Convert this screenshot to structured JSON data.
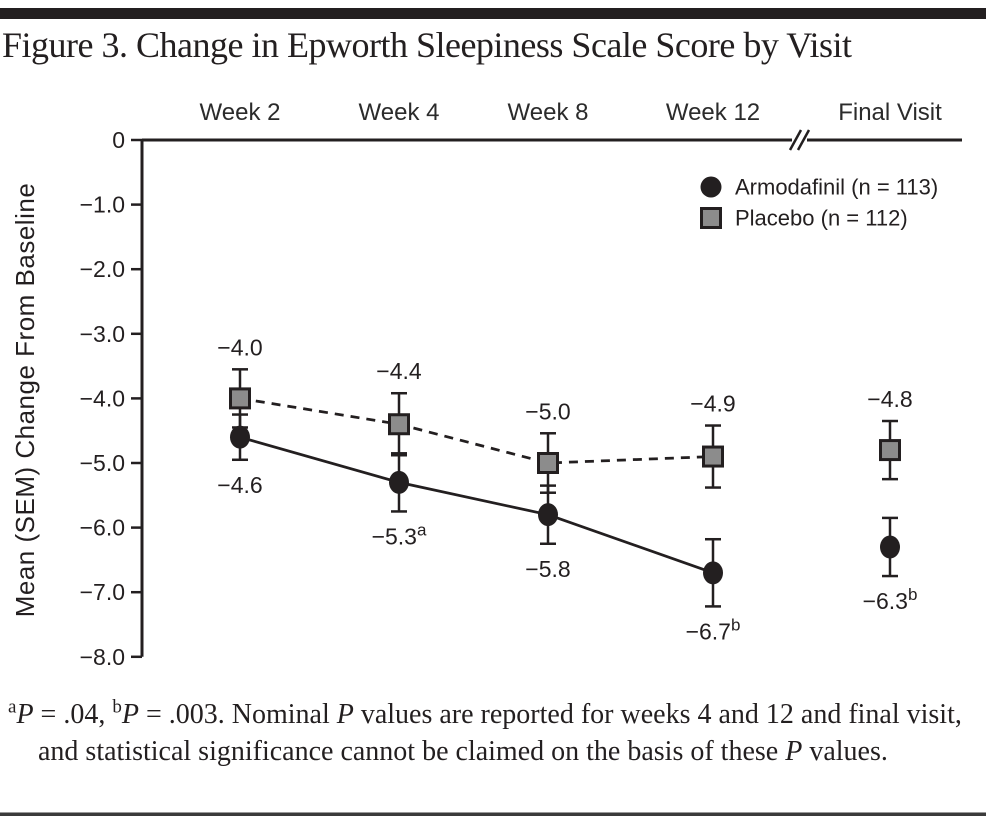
{
  "header": {
    "title": "Figure 3. Change in Epworth Sleepiness Scale Score by Visit"
  },
  "chart_data": {
    "type": "line",
    "title": "Figure 3. Change in Epworth Sleepiness Scale Score by Visit",
    "categories": [
      "Week 2",
      "Week 4",
      "Week 8",
      "Week 12",
      "Final Visit"
    ],
    "axis_break_after_category": "Week 12",
    "ylabel": "Mean (SEM) Change From Baseline",
    "xlabel": "",
    "ylim": [
      -8.0,
      0
    ],
    "grid": false,
    "yticks": [
      {
        "v": 0,
        "label": "0"
      },
      {
        "v": -1,
        "label": "−1.0"
      },
      {
        "v": -2,
        "label": "−2.0"
      },
      {
        "v": -3,
        "label": "−3.0"
      },
      {
        "v": -4,
        "label": "−4.0"
      },
      {
        "v": -5,
        "label": "−5.0"
      },
      {
        "v": -6,
        "label": "−6.0"
      },
      {
        "v": -7,
        "label": "−7.0"
      },
      {
        "v": -8,
        "label": "−8.0"
      }
    ],
    "legend": {
      "position": "top-right"
    },
    "series": [
      {
        "id": "armodafinil",
        "name": "Armodafinil (n = 113)",
        "marker": "circle",
        "marker_fill": "#231f20",
        "line_style": "solid",
        "line_color": "#231f20",
        "values": [
          -4.6,
          -5.3,
          -5.8,
          -6.7,
          -6.3
        ],
        "sem": [
          0.35,
          0.45,
          0.45,
          0.52,
          0.45
        ],
        "labels": [
          {
            "text": "−4.6"
          },
          {
            "text": "−5.3",
            "sup": "a"
          },
          {
            "text": "−5.8"
          },
          {
            "text": "−6.7",
            "sup": "b"
          },
          {
            "text": "−6.3",
            "sup": "b"
          }
        ],
        "label_position": "below",
        "connected_through_index": 3
      },
      {
        "id": "placebo",
        "name": "Placebo (n = 112)",
        "marker": "square",
        "marker_fill": "#8c8c8c",
        "line_style": "dashed",
        "line_color": "#231f20",
        "values": [
          -4.0,
          -4.4,
          -5.0,
          -4.9,
          -4.8
        ],
        "sem": [
          0.45,
          0.48,
          0.46,
          0.48,
          0.45
        ],
        "labels": [
          {
            "text": "−4.0"
          },
          {
            "text": "−4.4"
          },
          {
            "text": "−5.0"
          },
          {
            "text": "−4.9"
          },
          {
            "text": "−4.8"
          }
        ],
        "label_position": "above",
        "connected_through_index": 3
      }
    ]
  },
  "footnote": {
    "segments": [
      {
        "text": "a",
        "style": "sup"
      },
      {
        "text": "P",
        "style": "italic"
      },
      {
        "text": " = .04, "
      },
      {
        "text": "b",
        "style": "sup"
      },
      {
        "text": "P",
        "style": "italic"
      },
      {
        "text": " = .003. Nominal "
      },
      {
        "text": "P",
        "style": "italic"
      },
      {
        "text": " values are reported for weeks 4 and 12 and final visit, and statistical significance cannot be claimed on the basis of these "
      },
      {
        "text": "P",
        "style": "italic"
      },
      {
        "text": " values."
      }
    ]
  },
  "colors": {
    "ink": "#231f20",
    "gray_marker": "#8c8c8c",
    "top_rule": "#231f20",
    "bottom_rule": "#3b3b3b"
  }
}
